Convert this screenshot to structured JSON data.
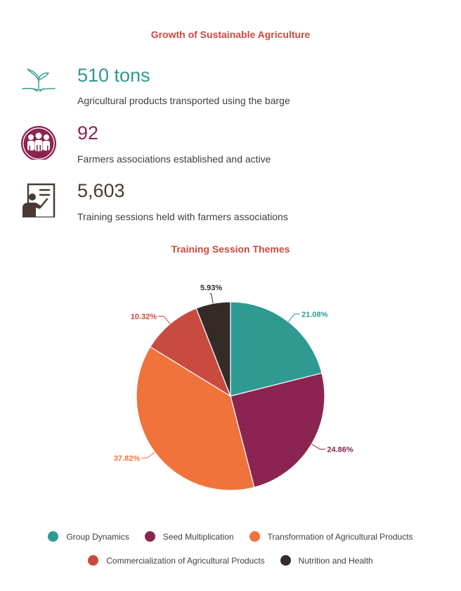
{
  "header": {
    "title": "Growth of Sustainable Agriculture"
  },
  "stats": [
    {
      "value": "510 tons",
      "label": "Agricultural products transported using the barge",
      "icon": "seedling-icon",
      "color": "#2f9a91"
    },
    {
      "value": "92",
      "label": "Farmers associations established and active",
      "icon": "group-icon",
      "color": "#8c2452"
    },
    {
      "value": "5,603",
      "label": "Training sessions held with farmers associations",
      "icon": "teacher-board-icon",
      "color": "#4a3a35"
    }
  ],
  "chart_data": {
    "type": "pie",
    "title": "Training Session Themes",
    "slices": [
      {
        "name": "Group Dynamics",
        "value": 21.08,
        "label": "21.08%",
        "color": "#2f9a91"
      },
      {
        "name": "Seed Multiplication",
        "value": 24.86,
        "label": "24.86%",
        "color": "#8c2452"
      },
      {
        "name": "Transformation of Agricultural Products",
        "value": 37.82,
        "label": "37.82%",
        "color": "#ef733a"
      },
      {
        "name": "Commercialization of Agricultural Products",
        "value": 10.32,
        "label": "10.32%",
        "color": "#c94a3f"
      },
      {
        "name": "Nutrition and Health",
        "value": 5.93,
        "label": "5.93%",
        "color": "#342b29"
      }
    ],
    "legend_position": "bottom"
  }
}
